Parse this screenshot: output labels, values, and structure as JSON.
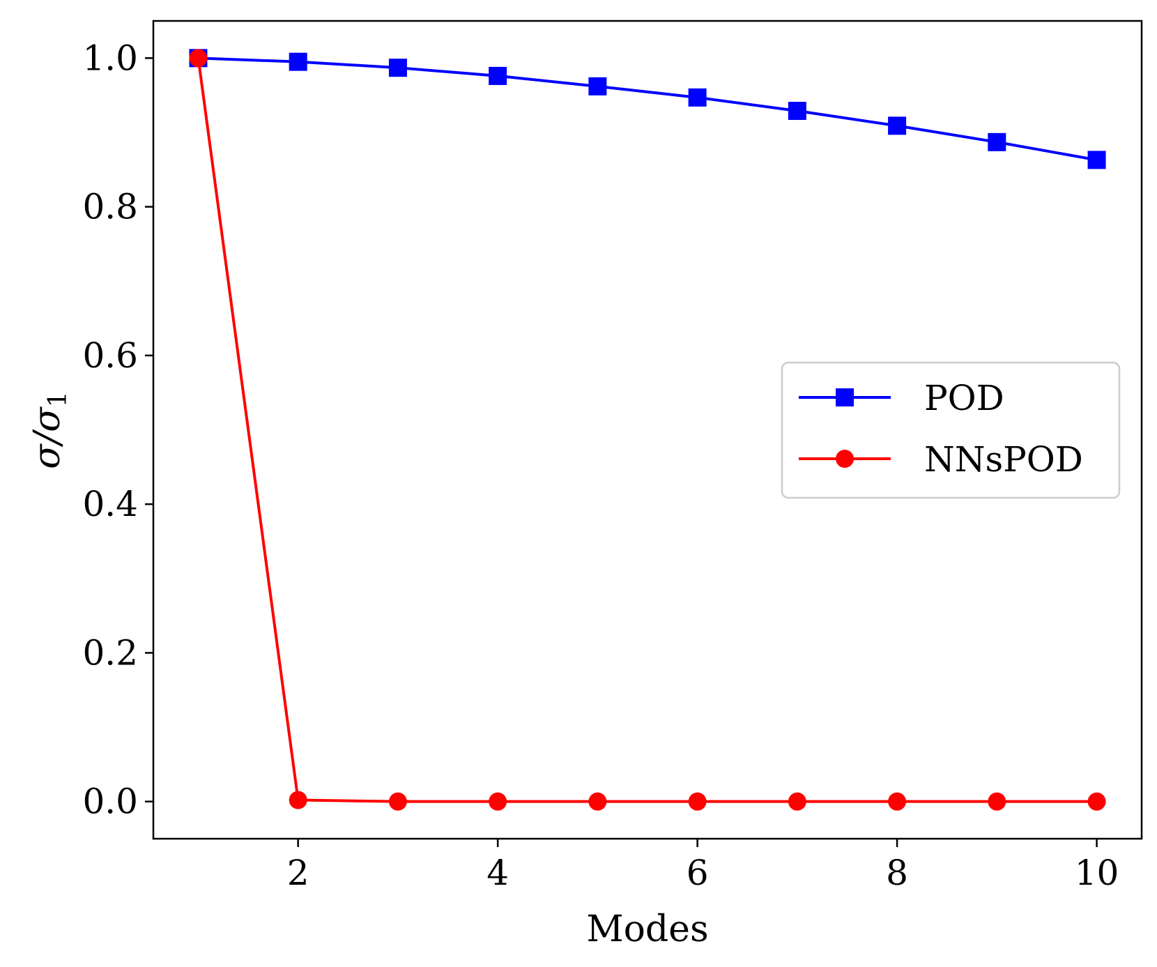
{
  "chart_data": {
    "type": "line",
    "title": "",
    "xlabel": "Modes",
    "ylabel": {
      "main": "σ/σ",
      "subscript": "1"
    },
    "x": [
      1,
      2,
      3,
      4,
      5,
      6,
      7,
      8,
      9,
      10
    ],
    "xlim": [
      0.55,
      10.45
    ],
    "ylim": [
      -0.05,
      1.05
    ],
    "xticks": [
      2,
      4,
      6,
      8,
      10
    ],
    "xtick_labels": [
      "2",
      "4",
      "6",
      "8",
      "10"
    ],
    "yticks": [
      0.0,
      0.2,
      0.4,
      0.6,
      0.8,
      1.0
    ],
    "ytick_labels": [
      "0.0",
      "0.2",
      "0.4",
      "0.6",
      "0.8",
      "1.0"
    ],
    "grid": false,
    "legend_position": "center-right",
    "series": [
      {
        "name": "POD",
        "color": "#0000ff",
        "marker": "square",
        "values": [
          1.0,
          0.995,
          0.987,
          0.976,
          0.962,
          0.947,
          0.929,
          0.909,
          0.887,
          0.863
        ]
      },
      {
        "name": "NNsPOD",
        "color": "#ff0000",
        "marker": "circle",
        "values": [
          1.0,
          0.002,
          0.0,
          0.0,
          0.0,
          0.0,
          0.0,
          0.0,
          0.0,
          0.0
        ]
      }
    ]
  }
}
